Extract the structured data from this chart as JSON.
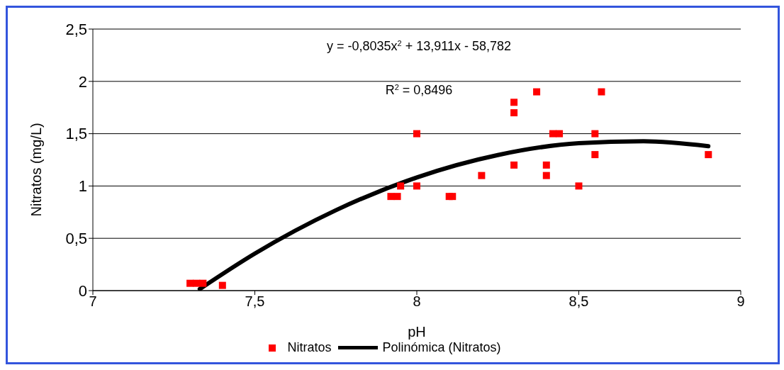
{
  "chart_data": {
    "type": "scatter",
    "xlabel": "pH",
    "ylabel": "Nitratos (mg/L)",
    "xlim": [
      7,
      9
    ],
    "xticks": [
      7,
      {
        "value": 7.5,
        "label": "7,5"
      },
      8,
      {
        "value": 8.5,
        "label": "8,5"
      },
      9
    ],
    "ylim": [
      0,
      2.5
    ],
    "yticks": [
      0,
      {
        "value": 0.5,
        "label": "0,5"
      },
      1,
      {
        "value": 1.5,
        "label": "1,5"
      },
      2,
      {
        "value": 2.5,
        "label": "2,5"
      }
    ],
    "grid": "y",
    "legend": "bottom",
    "marker": "square",
    "annotations": [
      "y = -0,8035x$^{2}$ + 13,911x - 58,782",
      "R$^{2}$ = 0,8496"
    ],
    "series": [
      {
        "name": "Nitratos",
        "color": "#ff0000",
        "x": [
          7.3,
          7.32,
          7.34,
          7.4,
          7.92,
          7.94,
          7.95,
          8.0,
          8.0,
          8.1,
          8.11,
          8.2,
          8.3,
          8.3,
          8.3,
          8.37,
          8.4,
          8.4,
          8.42,
          8.44,
          8.5,
          8.55,
          8.55,
          8.57,
          8.9
        ],
        "values": [
          0.07,
          0.07,
          0.07,
          0.05,
          0.9,
          0.9,
          1.0,
          1.5,
          1.0,
          0.9,
          0.9,
          1.1,
          1.8,
          1.7,
          1.2,
          1.9,
          1.2,
          1.1,
          1.5,
          1.5,
          1.0,
          1.5,
          1.3,
          1.9,
          1.3
        ]
      },
      {
        "name": "Polinómica (Nitratos)",
        "type": "line",
        "color": "#000000",
        "marker": "none",
        "line_style": "solid",
        "x": [
          7.33,
          7.5,
          7.75,
          8.0,
          8.25,
          8.5,
          8.7,
          8.9
        ],
        "values": [
          0.015,
          0.354,
          0.768,
          1.082,
          1.296,
          1.409,
          1.428,
          1.381
        ]
      }
    ]
  }
}
